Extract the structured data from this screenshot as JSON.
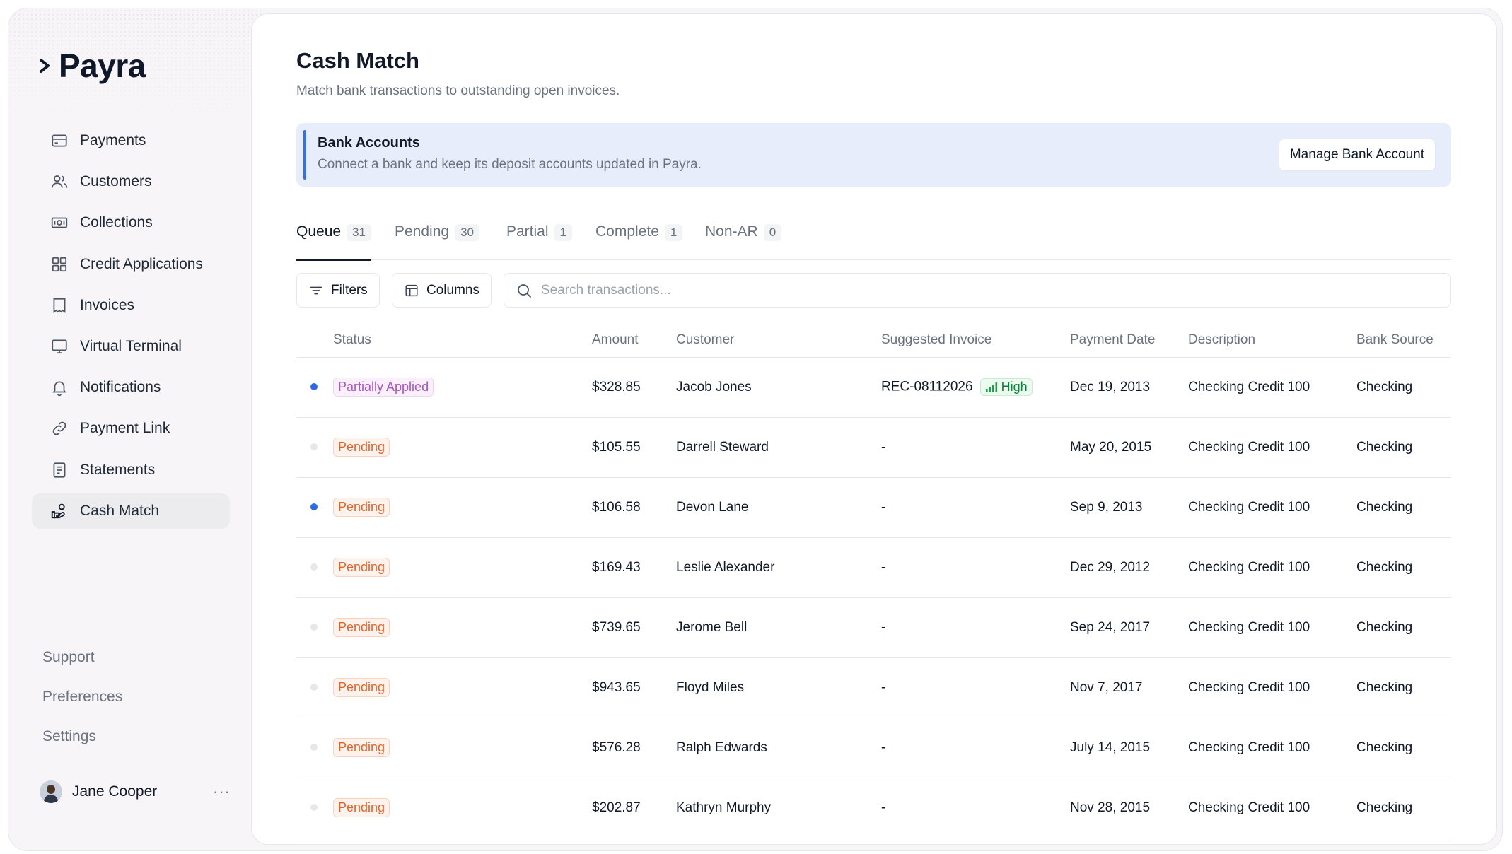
{
  "brand": {
    "name": "Payra"
  },
  "sidebar": {
    "items": [
      {
        "label": "Payments",
        "icon": "card-icon",
        "active": false
      },
      {
        "label": "Customers",
        "icon": "users-icon",
        "active": false
      },
      {
        "label": "Collections",
        "icon": "cash-icon",
        "active": false
      },
      {
        "label": "Credit Applications",
        "icon": "grid-icon",
        "active": false
      },
      {
        "label": "Invoices",
        "icon": "invoice-icon",
        "active": false
      },
      {
        "label": "Virtual Terminal",
        "icon": "monitor-icon",
        "active": false
      },
      {
        "label": "Notifications",
        "icon": "bell-icon",
        "active": false
      },
      {
        "label": "Payment Link",
        "icon": "link-icon",
        "active": false
      },
      {
        "label": "Statements",
        "icon": "document-icon",
        "active": false
      },
      {
        "label": "Cash Match",
        "icon": "hand-coins-icon",
        "active": true
      }
    ],
    "bottom": [
      "Support",
      "Preferences",
      "Settings"
    ],
    "user": {
      "name": "Jane Cooper",
      "more": "···"
    }
  },
  "page": {
    "title": "Cash Match",
    "subtitle": "Match bank transactions to outstanding open invoices."
  },
  "banner": {
    "title": "Bank Accounts",
    "subtitle": "Connect a bank and keep its deposit accounts updated in Payra.",
    "button": "Manage Bank Account"
  },
  "tabs": [
    {
      "label": "Queue",
      "count": "31",
      "active": true
    },
    {
      "label": "Pending",
      "count": "30",
      "active": false
    },
    {
      "label": "Partial",
      "count": "1",
      "active": false
    },
    {
      "label": "Complete",
      "count": "1",
      "active": false
    },
    {
      "label": "Non-AR",
      "count": "0",
      "active": false
    }
  ],
  "toolbar": {
    "filters": "Filters",
    "columns": "Columns",
    "search_placeholder": "Search transactions..."
  },
  "table": {
    "headers": [
      "Status",
      "Amount",
      "Customer",
      "Suggested Invoice",
      "Payment Date",
      "Description",
      "Bank Source"
    ],
    "rows": [
      {
        "unread": true,
        "status": "Partially Applied",
        "status_type": "partial",
        "amount": "$328.85",
        "customer": "Jacob Jones",
        "invoice": "REC-08112026",
        "confidence": "High",
        "date": "Dec 19, 2013",
        "description": "Checking Credit 100",
        "source": "Checking"
      },
      {
        "unread": false,
        "status": "Pending",
        "status_type": "pending",
        "amount": "$105.55",
        "customer": "Darrell Steward",
        "invoice": "-",
        "confidence": "",
        "date": "May 20, 2015",
        "description": "Checking Credit 100",
        "source": "Checking"
      },
      {
        "unread": true,
        "status": "Pending",
        "status_type": "pending",
        "amount": "$106.58",
        "customer": "Devon Lane",
        "invoice": "-",
        "confidence": "",
        "date": "Sep 9, 2013",
        "description": "Checking Credit 100",
        "source": "Checking"
      },
      {
        "unread": false,
        "status": "Pending",
        "status_type": "pending",
        "amount": "$169.43",
        "customer": "Leslie Alexander",
        "invoice": "-",
        "confidence": "",
        "date": "Dec 29, 2012",
        "description": "Checking Credit 100",
        "source": "Checking"
      },
      {
        "unread": false,
        "status": "Pending",
        "status_type": "pending",
        "amount": "$739.65",
        "customer": "Jerome Bell",
        "invoice": "-",
        "confidence": "",
        "date": "Sep 24, 2017",
        "description": "Checking Credit 100",
        "source": "Checking"
      },
      {
        "unread": false,
        "status": "Pending",
        "status_type": "pending",
        "amount": "$943.65",
        "customer": "Floyd Miles",
        "invoice": "-",
        "confidence": "",
        "date": "Nov 7, 2017",
        "description": "Checking Credit 100",
        "source": "Checking"
      },
      {
        "unread": false,
        "status": "Pending",
        "status_type": "pending",
        "amount": "$576.28",
        "customer": "Ralph Edwards",
        "invoice": "-",
        "confidence": "",
        "date": "July 14, 2015",
        "description": "Checking Credit 100",
        "source": "Checking"
      },
      {
        "unread": false,
        "status": "Pending",
        "status_type": "pending",
        "amount": "$202.87",
        "customer": "Kathryn Murphy",
        "invoice": "-",
        "confidence": "",
        "date": "Nov 28, 2015",
        "description": "Checking Credit 100",
        "source": "Checking"
      }
    ]
  },
  "colors": {
    "accent": "#2f6be5",
    "banner_bg": "#e8edfc",
    "partial": "#a855c7",
    "pending": "#e0642a",
    "high_confidence": "#15803d"
  }
}
